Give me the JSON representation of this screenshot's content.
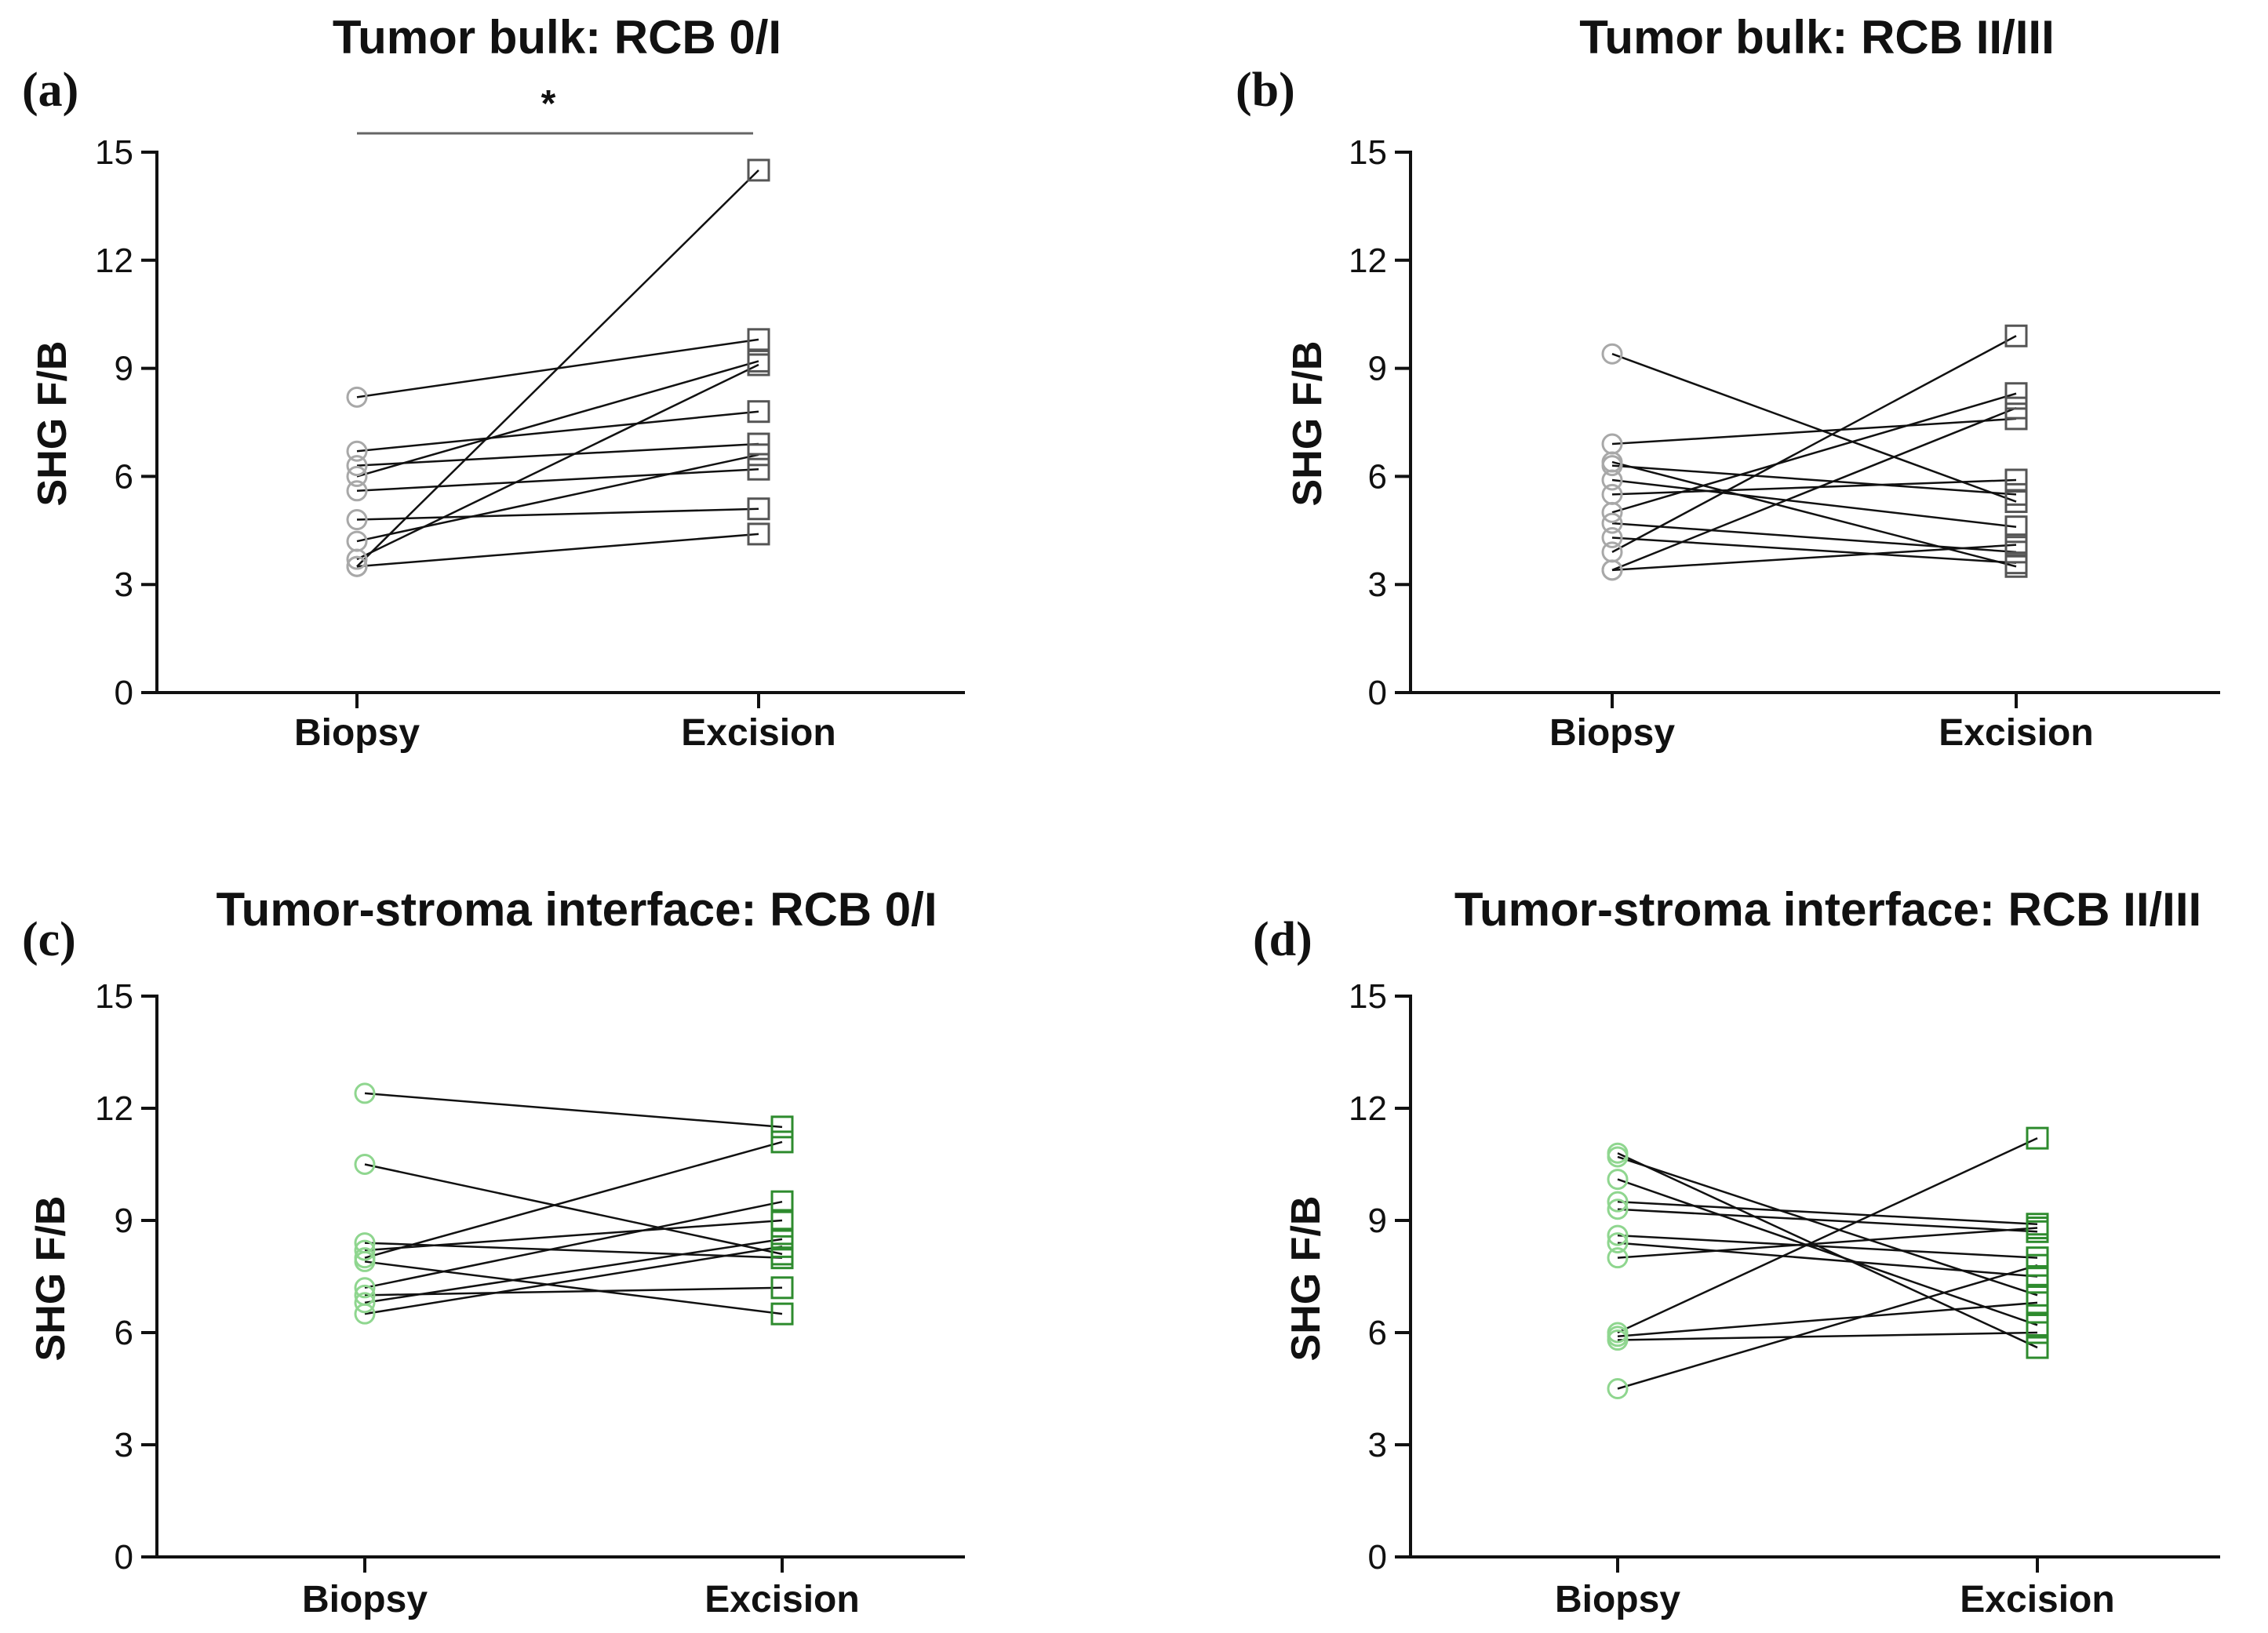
{
  "chart_data": [
    {
      "type": "line",
      "panel_label": "(a)",
      "title": "Tumor bulk: RCB 0/I",
      "xlabel": "",
      "ylabel": "SHG F/B",
      "categories": [
        "Biopsy",
        "Excision"
      ],
      "ylim": [
        0,
        15
      ],
      "yticks": [
        "0",
        "3",
        "6",
        "9",
        "12",
        "15"
      ],
      "significance": "*",
      "biopsy_marker": "circle",
      "excision_marker": "square",
      "biopsy_color": "#a8a8a8",
      "excision_color": "#555555",
      "pairs": [
        [
          8.2,
          9.8
        ],
        [
          6.7,
          7.8
        ],
        [
          6.3,
          6.9
        ],
        [
          6.0,
          9.2
        ],
        [
          5.6,
          6.2
        ],
        [
          4.8,
          5.1
        ],
        [
          4.2,
          6.6
        ],
        [
          3.7,
          9.1
        ],
        [
          3.5,
          14.5
        ],
        [
          3.5,
          4.4
        ]
      ]
    },
    {
      "type": "line",
      "panel_label": "(b)",
      "title": "Tumor bulk: RCB II/III",
      "xlabel": "",
      "ylabel": "SHG F/B",
      "categories": [
        "Biopsy",
        "Excision"
      ],
      "ylim": [
        0,
        15
      ],
      "yticks": [
        "0",
        "3",
        "6",
        "9",
        "12",
        "15"
      ],
      "significance": "",
      "biopsy_marker": "circle",
      "excision_marker": "square",
      "biopsy_color": "#a8a8a8",
      "excision_color": "#555555",
      "pairs": [
        [
          9.4,
          5.3
        ],
        [
          6.9,
          7.6
        ],
        [
          6.4,
          3.5
        ],
        [
          6.3,
          5.5
        ],
        [
          5.9,
          4.6
        ],
        [
          5.5,
          5.9
        ],
        [
          5.0,
          8.3
        ],
        [
          4.7,
          3.9
        ],
        [
          4.3,
          3.6
        ],
        [
          3.9,
          9.9
        ],
        [
          3.4,
          4.1
        ],
        [
          3.4,
          7.9
        ]
      ]
    },
    {
      "type": "line",
      "panel_label": "(c)",
      "title": "Tumor-stroma interface: RCB 0/I",
      "xlabel": "",
      "ylabel": "SHG F/B",
      "categories": [
        "Biopsy",
        "Excision"
      ],
      "ylim": [
        0,
        15
      ],
      "yticks": [
        "0",
        "3",
        "6",
        "9",
        "12",
        "15"
      ],
      "significance": "",
      "biopsy_marker": "circle",
      "excision_marker": "square",
      "biopsy_color": "#8fd68f",
      "excision_color": "#2e8b2e",
      "pairs": [
        [
          12.4,
          11.5
        ],
        [
          10.5,
          8.1
        ],
        [
          8.4,
          8.0
        ],
        [
          8.2,
          9.0
        ],
        [
          8.0,
          11.1
        ],
        [
          7.9,
          6.5
        ],
        [
          7.2,
          9.5
        ],
        [
          7.0,
          7.2
        ],
        [
          6.8,
          8.5
        ],
        [
          6.5,
          8.3
        ]
      ]
    },
    {
      "type": "line",
      "panel_label": "(d)",
      "title": "Tumor-stroma interface: RCB II/III",
      "xlabel": "",
      "ylabel": "SHG F/B",
      "categories": [
        "Biopsy",
        "Excision"
      ],
      "ylim": [
        0,
        15
      ],
      "yticks": [
        "0",
        "3",
        "6",
        "9",
        "12",
        "15"
      ],
      "significance": "",
      "biopsy_marker": "circle",
      "excision_marker": "square",
      "biopsy_color": "#8fd68f",
      "excision_color": "#2e8b2e",
      "pairs": [
        [
          10.8,
          5.6
        ],
        [
          10.7,
          7.0
        ],
        [
          10.1,
          6.2
        ],
        [
          9.5,
          8.9
        ],
        [
          9.3,
          8.7
        ],
        [
          8.6,
          8.0
        ],
        [
          8.4,
          7.5
        ],
        [
          8.0,
          8.8
        ],
        [
          6.0,
          11.2
        ],
        [
          5.9,
          6.8
        ],
        [
          5.8,
          6.0
        ],
        [
          4.5,
          7.8
        ]
      ]
    }
  ]
}
